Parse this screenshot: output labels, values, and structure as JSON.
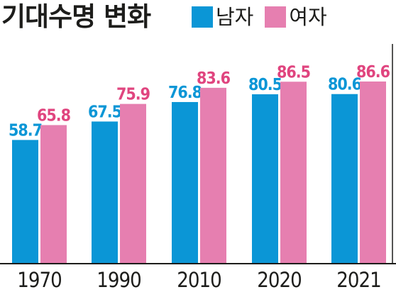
{
  "title": "기대수명 변화",
  "legend": [
    {
      "label": "남자",
      "color": "#0b96d6"
    },
    {
      "label": "여자",
      "color": "#e67fb0"
    }
  ],
  "chart_data": {
    "type": "bar",
    "title": "기대수명 변화",
    "categories": [
      "1970",
      "1990",
      "2010",
      "2020",
      "2021"
    ],
    "series": [
      {
        "name": "남자",
        "color": "#0b96d6",
        "label_color": "#0b96d6",
        "values": [
          58.7,
          67.5,
          76.8,
          80.5,
          80.6
        ]
      },
      {
        "name": "여자",
        "color": "#e67fb0",
        "label_color": "#e0457f",
        "values": [
          65.8,
          75.9,
          83.6,
          86.5,
          86.6
        ]
      }
    ],
    "value_labels": [
      [
        "58.7",
        "67.5",
        "76.8",
        "80.5",
        "80.6"
      ],
      [
        "65.8",
        "75.9",
        "83.6",
        "86.5",
        "86.6"
      ]
    ],
    "legend_position": "top-right",
    "grid": false
  }
}
